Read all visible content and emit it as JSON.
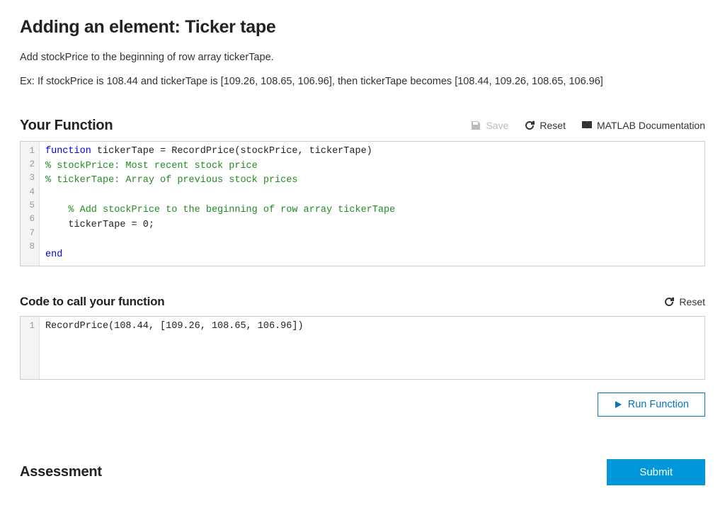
{
  "title": "Adding an element: Ticker tape",
  "description1": "Add stockPrice to the beginning of row array tickerTape.",
  "description2": "Ex: If stockPrice is 108.44 and tickerTape is [109.26, 108.65, 106.96], then tickerTape becomes [108.44, 109.26, 108.65, 106.96]",
  "functionSection": {
    "title": "Your Function",
    "save": "Save",
    "reset": "Reset",
    "docs": "MATLAB Documentation",
    "code": {
      "lineCount": 8,
      "lines": [
        {
          "n": 1,
          "tokens": [
            {
              "t": "function",
              "c": "kw"
            },
            {
              "t": " tickerTape = RecordPrice(stockPrice, tickerTape)",
              "c": ""
            }
          ]
        },
        {
          "n": 2,
          "tokens": [
            {
              "t": "% stockPrice: Most recent stock price",
              "c": "cm"
            }
          ]
        },
        {
          "n": 3,
          "tokens": [
            {
              "t": "% tickerTape: Array of previous stock prices",
              "c": "cm"
            }
          ]
        },
        {
          "n": 4,
          "tokens": [
            {
              "t": "",
              "c": ""
            }
          ]
        },
        {
          "n": 5,
          "tokens": [
            {
              "t": "    ",
              "c": ""
            },
            {
              "t": "% Add stockPrice to the beginning of row array tickerTape",
              "c": "cm"
            }
          ]
        },
        {
          "n": 6,
          "tokens": [
            {
              "t": "    tickerTape = 0;",
              "c": ""
            }
          ]
        },
        {
          "n": 7,
          "tokens": [
            {
              "t": "",
              "c": ""
            }
          ]
        },
        {
          "n": 8,
          "tokens": [
            {
              "t": "end",
              "c": "kw"
            }
          ]
        }
      ]
    }
  },
  "callSection": {
    "title": "Code to call your function",
    "reset": "Reset",
    "code": {
      "lineCount": 1,
      "lines": [
        {
          "n": 1,
          "tokens": [
            {
              "t": "RecordPrice(108.44, [109.26, 108.65, 106.96])",
              "c": ""
            }
          ]
        }
      ]
    }
  },
  "runButton": "Run Function",
  "assessment": {
    "title": "Assessment",
    "submit": "Submit"
  },
  "colors": {
    "keyword": "#0000e0",
    "comment": "#228b22",
    "primaryBlue": "#0076c0",
    "submitBlue": "#0098db",
    "border": "#cccccc",
    "gutterBg": "#f4f4f4",
    "disabled": "#bbbbbb"
  }
}
